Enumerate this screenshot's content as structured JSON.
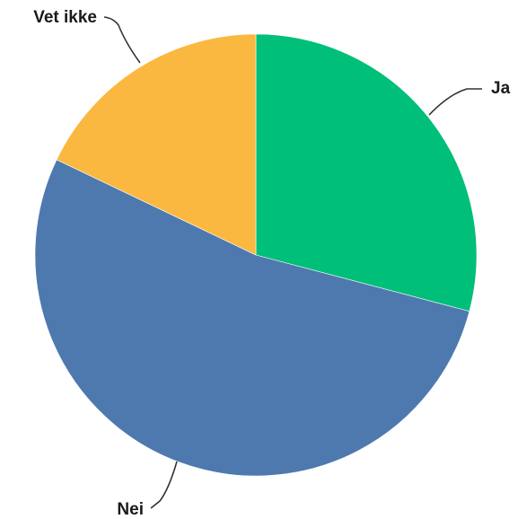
{
  "chart_data": {
    "type": "pie",
    "title": "",
    "legend": "none",
    "start_angle_deg": 0,
    "direction": "clockwise",
    "slices": [
      {
        "label": "Ja",
        "value": 29.1,
        "color": "#00BF78"
      },
      {
        "label": "Nei",
        "value": 53.0,
        "color": "#4E79AF"
      },
      {
        "label": "Vet ikke",
        "value": 17.9,
        "color": "#FAB840"
      }
    ]
  }
}
